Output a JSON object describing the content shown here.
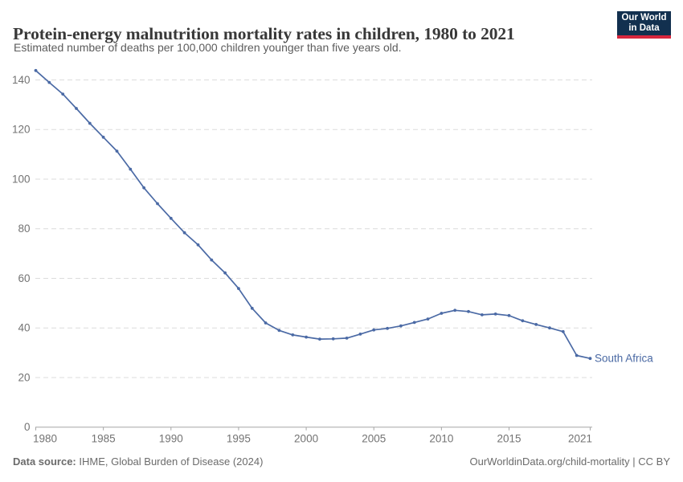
{
  "header": {
    "title": "Protein-energy malnutrition mortality rates in children, 1980 to 2021",
    "subtitle": "Estimated number of deaths per 100,000 children younger than five years old.",
    "logo": {
      "line1": "Our World",
      "line2": "in Data"
    }
  },
  "footer": {
    "source_label": "Data source:",
    "source_value": " IHME, Global Burden of Disease (2024)",
    "attribution": "OurWorldinData.org/child-mortality | CC BY"
  },
  "colors": {
    "line": "#4b6aa5",
    "series_label": "#4a69a3",
    "gridline": "#dcdcdc",
    "axis": "#a6a6a6",
    "tick_label": "#737373",
    "title": "#383838",
    "subtitle": "#5c5c5c",
    "logo_bg": "#12304f",
    "logo_stripe": "#d7263d"
  },
  "chart_data": {
    "type": "line",
    "title": "Protein-energy malnutrition mortality rates in children, 1980 to 2021",
    "subtitle": "Estimated number of deaths per 100,000 children younger than five years old.",
    "xlabel": "",
    "ylabel": "",
    "xlim": [
      1980,
      2021
    ],
    "ylim": [
      0,
      140
    ],
    "x_ticks": [
      1980,
      1985,
      1990,
      1995,
      2000,
      2005,
      2010,
      2015,
      2021
    ],
    "y_ticks": [
      0,
      20,
      40,
      60,
      80,
      100,
      120,
      140
    ],
    "grid": "horizontal-dashed",
    "legend_position": "line-end-label",
    "x": [
      1980,
      1981,
      1982,
      1983,
      1984,
      1985,
      1986,
      1987,
      1988,
      1989,
      1990,
      1991,
      1992,
      1993,
      1994,
      1995,
      1996,
      1997,
      1998,
      1999,
      2000,
      2001,
      2002,
      2003,
      2004,
      2005,
      2006,
      2007,
      2008,
      2009,
      2010,
      2011,
      2012,
      2013,
      2014,
      2015,
      2016,
      2017,
      2018,
      2019,
      2020,
      2021
    ],
    "series": [
      {
        "name": "South Africa",
        "values": [
          143.8,
          139.0,
          134.3,
          128.5,
          122.5,
          116.9,
          111.3,
          104.0,
          96.5,
          90.1,
          84.2,
          78.4,
          73.5,
          67.4,
          62.2,
          55.9,
          47.9,
          42.0,
          39.0,
          37.2,
          36.3,
          35.5,
          35.6,
          35.9,
          37.5,
          39.2,
          39.8,
          40.8,
          42.2,
          43.6,
          45.9,
          47.1,
          46.6,
          45.3,
          45.6,
          45.0,
          42.9,
          41.4,
          40.0,
          38.5,
          28.9,
          27.7
        ]
      }
    ]
  }
}
